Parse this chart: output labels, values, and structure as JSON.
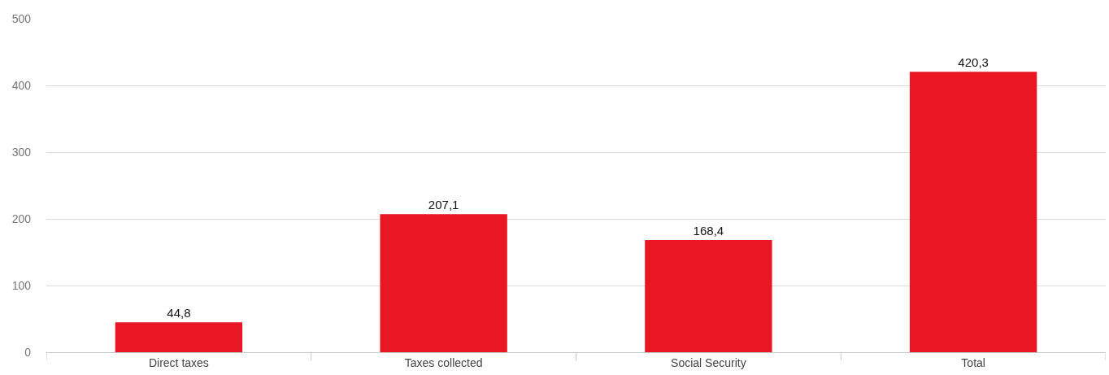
{
  "chart_data": {
    "type": "bar",
    "categories": [
      "Direct taxes",
      "Taxes collected",
      "Social Security",
      "Total"
    ],
    "values": [
      44.8,
      207.1,
      168.4,
      420.3
    ],
    "value_labels": [
      "44,8",
      "207,1",
      "168,4",
      "420,3"
    ],
    "color": "#e81723",
    "ylim": [
      0,
      500
    ],
    "yticks": [
      0,
      100,
      200,
      300,
      400,
      500
    ],
    "grid": "y",
    "legend": false
  }
}
